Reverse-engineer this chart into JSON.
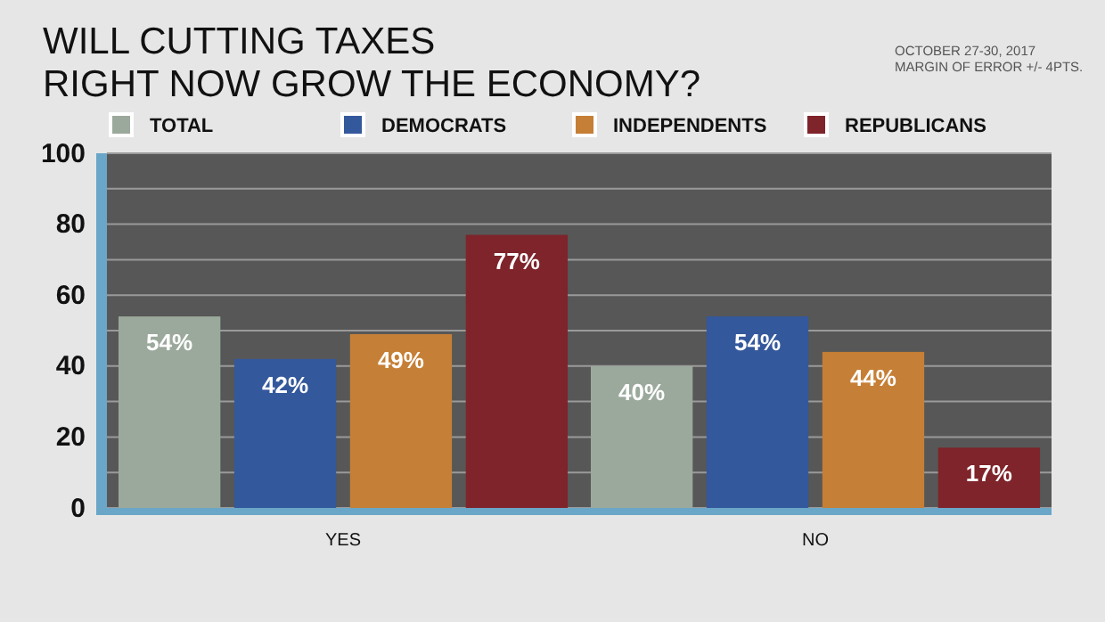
{
  "chart_data": {
    "type": "bar",
    "title": "WILL CUTTING TAXES\nRIGHT NOW GROW THE ECONOMY?",
    "annotations": [
      "OCTOBER 27-30, 2017",
      "MARGIN OF ERROR +/- 4PTS."
    ],
    "categories": [
      "YES",
      "NO"
    ],
    "series": [
      {
        "name": "TOTAL",
        "color": "#9ba99c",
        "values": [
          54,
          40
        ],
        "value_labels": [
          "54%",
          "40%"
        ]
      },
      {
        "name": "DEMOCRATS",
        "color": "#34589c",
        "values": [
          42,
          54
        ],
        "value_labels": [
          "42%",
          "54%"
        ]
      },
      {
        "name": "INDEPENDENTS",
        "color": "#c67f36",
        "values": [
          49,
          44
        ],
        "value_labels": [
          "49%",
          "44%"
        ]
      },
      {
        "name": "REPUBLICANS",
        "color": "#7e242a",
        "values": [
          77,
          17
        ],
        "value_labels": [
          "77%",
          "17%"
        ]
      }
    ],
    "ylim": [
      0,
      100
    ],
    "yticks": [
      0,
      {
        "value": 10,
        "label": null
      },
      20,
      {
        "value": 30,
        "label": null
      },
      40,
      {
        "value": 50,
        "label": null
      },
      60,
      {
        "value": 70,
        "label": null
      },
      80,
      {
        "value": 90,
        "label": null
      },
      100
    ],
    "grid": "y",
    "legend": "top"
  }
}
